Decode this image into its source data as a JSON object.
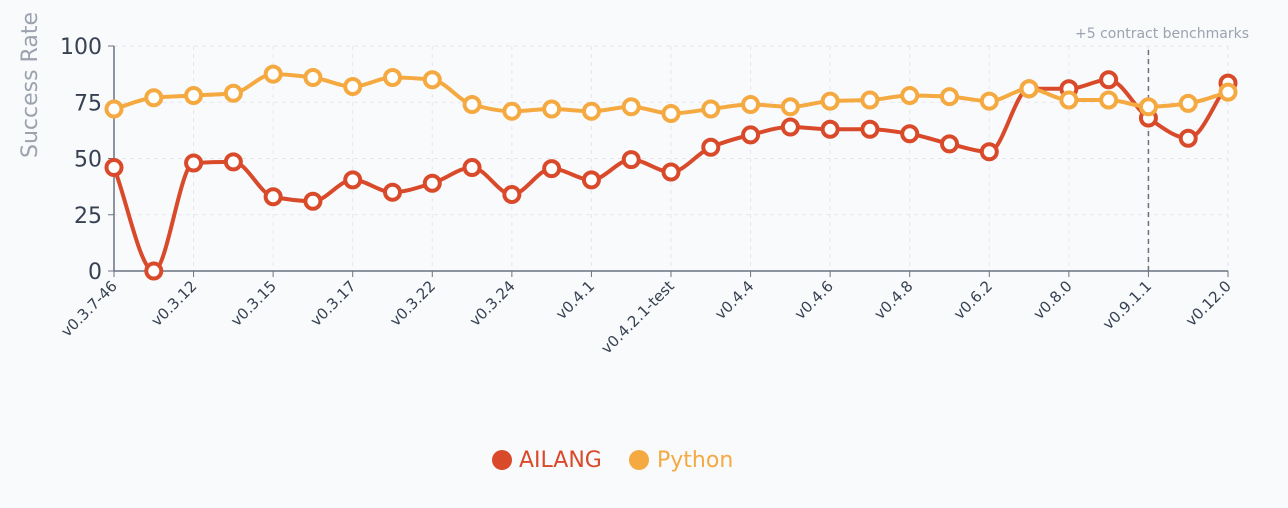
{
  "chart_data": {
    "type": "line",
    "ylabel": "Success Rate",
    "ylim": [
      0,
      100
    ],
    "yticks": [
      0,
      25,
      50,
      75,
      100
    ],
    "grid": true,
    "legend_position": "bottom",
    "x": [
      "v0.3.7-46",
      "",
      "v0.3.12",
      "",
      "v0.3.15",
      "",
      "v0.3.17",
      "",
      "v0.3.22",
      "",
      "v0.3.24",
      "",
      "v0.4.1",
      "",
      "v0.4.2.1-test",
      "",
      "v0.4.4",
      "",
      "v0.4.6",
      "",
      "v0.4.8",
      "",
      "v0.6.2",
      "",
      "v0.8.0",
      "",
      "v0.9.1.1",
      "",
      "v0.12.0"
    ],
    "xtick_labels": [
      "v0.3.7-46",
      "v0.3.12",
      "v0.3.15",
      "v0.3.17",
      "v0.3.22",
      "v0.3.24",
      "v0.4.1",
      "v0.4.2.1-test",
      "v0.4.4",
      "v0.4.6",
      "v0.4.8",
      "v0.6.2",
      "v0.8.0",
      "v0.9.1.1",
      "v0.12.0"
    ],
    "series": [
      {
        "name": "AILANG",
        "color": "#d94a2b",
        "values": [
          46,
          0,
          48,
          48.5,
          33,
          31,
          40.5,
          35,
          39,
          46,
          34,
          45.5,
          40.5,
          49.5,
          44,
          55,
          60.5,
          64,
          63,
          63,
          61,
          56.5,
          53,
          81,
          81,
          85,
          68,
          59,
          83.5
        ]
      },
      {
        "name": "Python",
        "color": "#f5a941",
        "values": [
          72,
          77,
          78,
          79,
          87.5,
          86,
          82,
          86,
          85,
          74,
          71,
          72,
          71,
          73,
          70,
          72,
          74,
          73,
          75.5,
          76,
          78,
          77.5,
          75.5,
          81,
          76,
          76,
          73,
          74.5,
          79.5
        ]
      }
    ],
    "annotations": [
      {
        "x": "v0.9.1.1",
        "text": "+5 contract benchmarks",
        "style": "dashed-vertical-line"
      }
    ]
  }
}
